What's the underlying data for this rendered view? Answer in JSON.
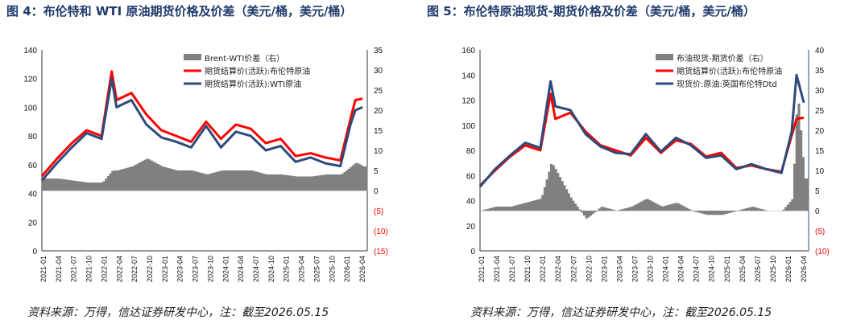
{
  "figures": {
    "left": {
      "title": "图 4：布伦特和 WTI 原油期货价格及价差（美元/桶，美元/桶）",
      "source": "资料来源：万得，信达证券研发中心，注：截至2026.05.15"
    },
    "right": {
      "title": "图 5：布伦特原油现货-期货价格及价差（美元/桶，美元/桶）",
      "source": "资料来源：万得，信达证券研发中心，注：截至2026.05.15"
    }
  },
  "colors": {
    "spread": "#808080",
    "red": "#ff0000",
    "blue": "#2e4a7a",
    "axisRed": "#ff0000"
  },
  "chart_data": [
    {
      "type": "line",
      "title": "",
      "ylim": [
        0,
        140
      ],
      "ylim_right": [
        -15,
        35
      ],
      "yticks_left": [
        "0",
        "20",
        "40",
        "60",
        "80",
        "100",
        "120",
        "140"
      ],
      "yticks_right": [
        "(15)",
        "(10)",
        "(5)",
        "0",
        "5",
        "10",
        "15",
        "20",
        "25",
        "30",
        "35"
      ],
      "x_labels": [
        "2021-01",
        "2021-04",
        "2021-07",
        "2021-10",
        "2022-01",
        "2022-04",
        "2022-07",
        "2022-10",
        "2023-01",
        "2023-04",
        "2023-07",
        "2023-10",
        "2024-01",
        "2024-04",
        "2024-07",
        "2024-10",
        "2025-01",
        "2025-04",
        "2025-07",
        "2025-10",
        "2026-01",
        "2026-04"
      ],
      "legend_position": "top-right",
      "legend": [
        "Brent-WTI价差（右）",
        "期货结算价(活跃):布伦特原油",
        "期货结算价(活跃):WTI原油"
      ],
      "x": [
        2021.0,
        2021.25,
        2021.5,
        2021.75,
        2022.0,
        2022.17,
        2022.25,
        2022.5,
        2022.75,
        2023.0,
        2023.25,
        2023.5,
        2023.75,
        2024.0,
        2024.25,
        2024.5,
        2024.75,
        2025.0,
        2025.25,
        2025.5,
        2025.75,
        2026.0,
        2026.17,
        2026.25,
        2026.37
      ],
      "series": [
        {
          "name": "期货结算价(活跃):布伦特原油",
          "axis": "left",
          "values": [
            52,
            64,
            75,
            84,
            80,
            125,
            105,
            110,
            95,
            84,
            80,
            76,
            90,
            78,
            88,
            85,
            75,
            78,
            66,
            68,
            65,
            63,
            92,
            105,
            106
          ]
        },
        {
          "name": "期货结算价(活跃):WTI原油",
          "axis": "left",
          "values": [
            49,
            61,
            72,
            82,
            78,
            120,
            100,
            105,
            88,
            79,
            76,
            72,
            87,
            72,
            83,
            80,
            70,
            73,
            62,
            65,
            61,
            59,
            88,
            98,
            100
          ]
        },
        {
          "name": "Brent-WTI价差（右）",
          "axis": "right",
          "type": "bar",
          "values": [
            3,
            3,
            2.5,
            2,
            2,
            5,
            5,
            6,
            8,
            6,
            5,
            5,
            4,
            5,
            5,
            5,
            4,
            4,
            3.5,
            3.5,
            4,
            4,
            6,
            7,
            6
          ]
        }
      ]
    },
    {
      "type": "line",
      "title": "",
      "ylim": [
        0,
        160
      ],
      "ylim_right": [
        -10,
        40
      ],
      "yticks_left": [
        "0",
        "20",
        "40",
        "60",
        "80",
        "100",
        "120",
        "140",
        "160"
      ],
      "yticks_right": [
        "(10)",
        "(5)",
        "0",
        "5",
        "10",
        "15",
        "20",
        "25",
        "30",
        "35",
        "40"
      ],
      "x_labels": [
        "2021-01",
        "2021-04",
        "2021-07",
        "2021-10",
        "2022-01",
        "2022-04",
        "2022-07",
        "2022-10",
        "2023-01",
        "2023-04",
        "2023-07",
        "2023-10",
        "2024-01",
        "2024-04",
        "2024-07",
        "2024-10",
        "2025-01",
        "2025-04",
        "2025-07",
        "2025-10",
        "2026-01",
        "2026-04"
      ],
      "legend_position": "top-right",
      "legend": [
        "布油现货-期货价差（右）",
        "期货结算价(活跃):布伦特原油",
        "现货价:原油:英国布伦特Dtd"
      ],
      "x": [
        2021.0,
        2021.25,
        2021.5,
        2021.75,
        2022.0,
        2022.17,
        2022.25,
        2022.5,
        2022.75,
        2023.0,
        2023.25,
        2023.5,
        2023.75,
        2024.0,
        2024.25,
        2024.5,
        2024.75,
        2025.0,
        2025.25,
        2025.5,
        2025.75,
        2026.0,
        2026.17,
        2026.25,
        2026.37
      ],
      "series": [
        {
          "name": "期货结算价(活跃):布伦特原油",
          "axis": "left",
          "values": [
            52,
            64,
            75,
            84,
            80,
            125,
            105,
            110,
            95,
            84,
            80,
            76,
            90,
            78,
            88,
            85,
            75,
            78,
            66,
            68,
            65,
            63,
            92,
            105,
            106
          ]
        },
        {
          "name": "现货价:原油:英国布伦特Dtd",
          "axis": "left",
          "values": [
            51,
            65,
            76,
            86,
            82,
            135,
            115,
            112,
            93,
            83,
            78,
            77,
            93,
            79,
            90,
            84,
            74,
            76,
            65,
            69,
            65,
            62,
            95,
            140,
            118
          ]
        },
        {
          "name": "布油现货-期货价差（右）",
          "axis": "right",
          "type": "bar",
          "values": [
            0,
            1,
            1,
            2,
            3,
            12,
            10,
            3,
            -2,
            1,
            0,
            1,
            3,
            1,
            2,
            0,
            -1,
            -1,
            0,
            1,
            0,
            0,
            3,
            30,
            8
          ]
        }
      ]
    }
  ]
}
